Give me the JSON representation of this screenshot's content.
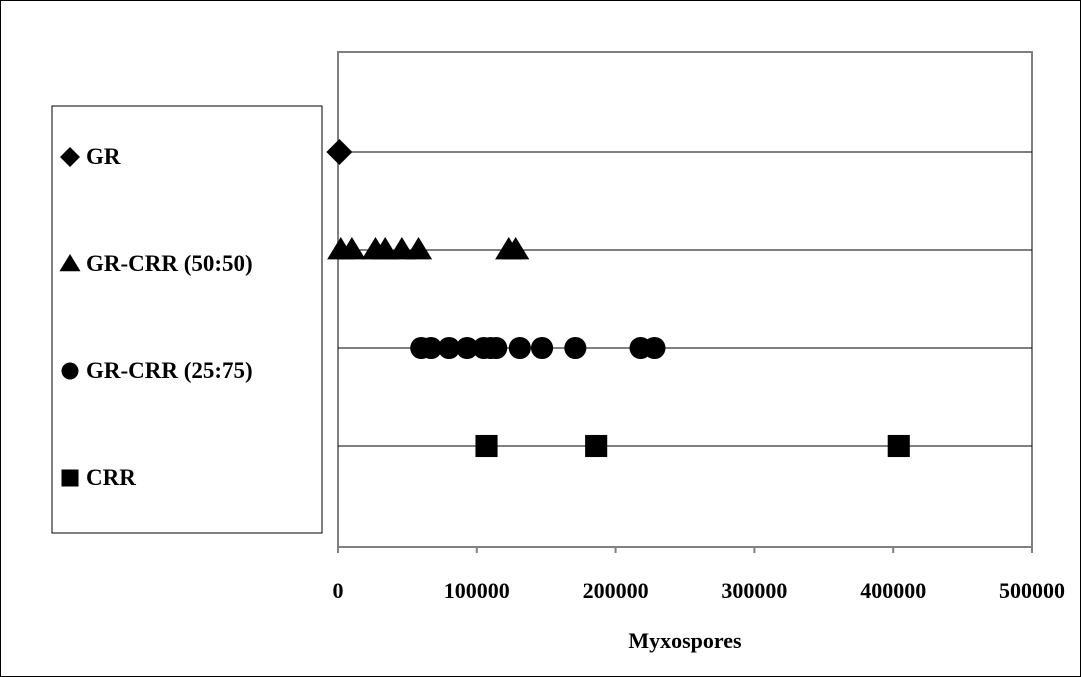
{
  "chart_data": {
    "type": "scatter",
    "title": "",
    "xlabel": "Myxospores",
    "ylabel": "",
    "xlim": [
      0,
      500000
    ],
    "x_ticks": [
      "0",
      "100000",
      "200000",
      "300000",
      "400000",
      "500000"
    ],
    "grid": "horizontal lines at each series row",
    "legend_position": "left",
    "series": [
      {
        "name": "GR",
        "marker": "diamond",
        "x": [
          1000
        ]
      },
      {
        "name": "GR-CRR (50:50)",
        "marker": "triangle",
        "x": [
          2000,
          10000,
          27000,
          34000,
          46000,
          58000,
          123000,
          128000
        ]
      },
      {
        "name": "GR-CRR (25:75)",
        "marker": "circle",
        "x": [
          60000,
          67000,
          80000,
          93000,
          105000,
          110000,
          114000,
          131000,
          147000,
          171000,
          218000,
          228000
        ]
      },
      {
        "name": "CRR",
        "marker": "square",
        "x": [
          107000,
          186000,
          404000
        ]
      }
    ],
    "colors": {
      "marker": "#000000",
      "axis": "#808080",
      "gridline": "#000000",
      "background": "#ffffff"
    }
  }
}
